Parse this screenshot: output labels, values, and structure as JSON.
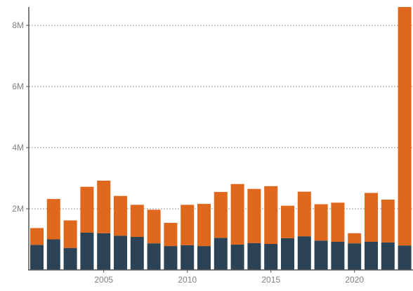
{
  "chart_data": {
    "type": "bar",
    "stacked": true,
    "categories": [
      2001,
      2002,
      2003,
      2004,
      2005,
      2006,
      2007,
      2008,
      2009,
      2010,
      2011,
      2012,
      2013,
      2014,
      2015,
      2016,
      2017,
      2018,
      2019,
      2020,
      2021,
      2022,
      2023
    ],
    "series": [
      {
        "color": "#2b4354",
        "values": [
          0.82,
          1.0,
          0.72,
          1.22,
          1.2,
          1.12,
          1.08,
          0.87,
          0.78,
          0.81,
          0.78,
          1.05,
          0.83,
          0.88,
          0.85,
          1.04,
          1.1,
          0.96,
          0.92,
          0.87,
          0.92,
          0.9,
          0.8
        ]
      },
      {
        "color": "#e0681c",
        "values": [
          0.55,
          1.32,
          0.9,
          1.5,
          1.72,
          1.3,
          1.05,
          1.1,
          0.76,
          1.32,
          1.38,
          1.5,
          1.98,
          1.77,
          1.89,
          1.06,
          1.46,
          1.19,
          1.28,
          0.33,
          1.6,
          1.4,
          7.8
        ]
      }
    ],
    "yticks": [
      "2M",
      "4M",
      "6M",
      "8M"
    ],
    "ytick_values": [
      2,
      4,
      6,
      8
    ],
    "xticks": [
      "2005",
      "2010",
      "2015",
      "2020"
    ],
    "xtick_values": [
      2005,
      2010,
      2015,
      2020
    ],
    "ylim": [
      0,
      8.6
    ],
    "grid": true
  }
}
